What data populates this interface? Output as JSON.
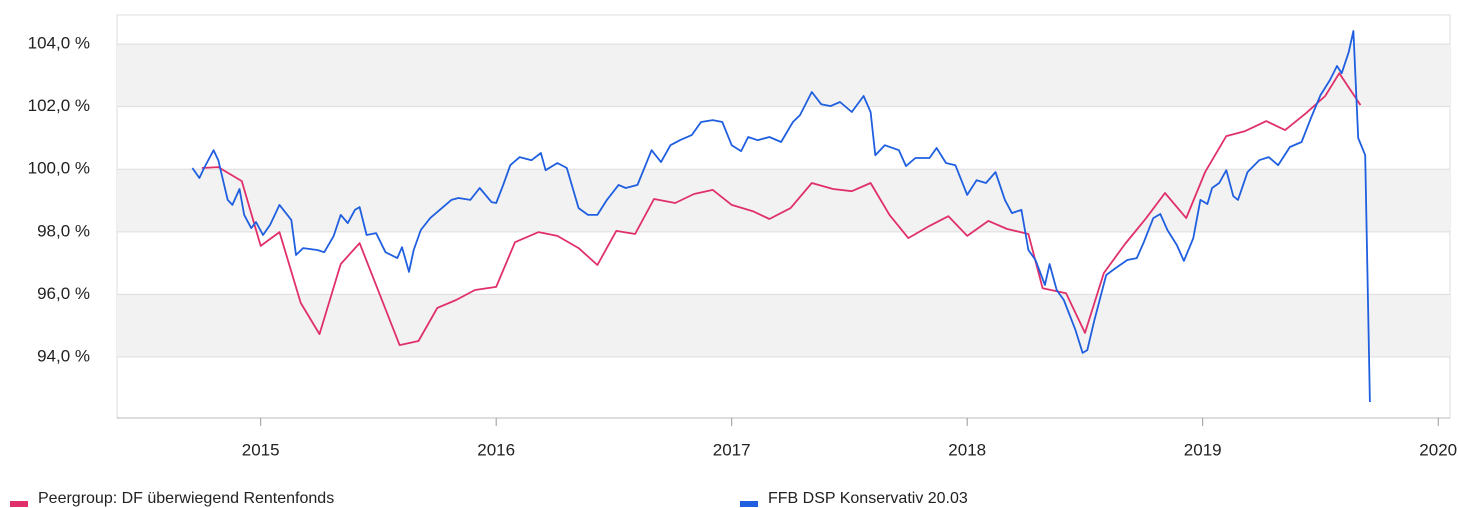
{
  "chart_data": {
    "type": "line",
    "xlim": [
      2014.39,
      2020.05
    ],
    "xticks": [
      2015,
      2016,
      2017,
      2018,
      2019,
      2020
    ],
    "ylim": [
      92.05,
      104.93
    ],
    "yticks": [
      {
        "value": 94,
        "label": "94,0 %"
      },
      {
        "value": 96,
        "label": "96,0 %"
      },
      {
        "value": 98,
        "label": "98,0 %"
      },
      {
        "value": 100,
        "label": "100,0 %"
      },
      {
        "value": 102,
        "label": "102,0 %"
      },
      {
        "value": 104,
        "label": "104,0 %"
      }
    ],
    "grid": true,
    "legend": "bottom",
    "series": [
      {
        "name": "Peergroup: DF überwiegend Rentenfonds",
        "color": "#e0306a",
        "x": [
          2014.75,
          2014.82,
          2014.92,
          2015.0,
          2015.08,
          2015.17,
          2015.25,
          2015.34,
          2015.42,
          2015.59,
          2015.67,
          2015.75,
          2015.83,
          2015.91,
          2016.0,
          2016.08,
          2016.18,
          2016.26,
          2016.35,
          2016.43,
          2016.51,
          2016.59,
          2016.67,
          2016.76,
          2016.84,
          2016.92,
          2017.0,
          2017.09,
          2017.16,
          2017.25,
          2017.34,
          2017.43,
          2017.51,
          2017.59,
          2017.67,
          2017.75,
          2017.84,
          2017.92,
          2018.0,
          2018.09,
          2018.17,
          2018.26,
          2018.32,
          2018.42,
          2018.5,
          2018.58,
          2018.67,
          2018.76,
          2018.84,
          2018.93,
          2019.01,
          2019.1,
          2019.18,
          2019.27,
          2019.35,
          2019.44,
          2019.52,
          2019.58,
          2019.67
        ],
        "values": [
          100.04,
          100.07,
          99.62,
          97.55,
          97.99,
          95.73,
          94.73,
          96.97,
          97.64,
          94.38,
          94.51,
          95.57,
          95.82,
          96.14,
          96.24,
          97.67,
          97.99,
          97.87,
          97.48,
          96.94,
          98.03,
          97.93,
          99.05,
          98.92,
          99.21,
          99.34,
          98.86,
          98.66,
          98.41,
          98.76,
          99.56,
          99.37,
          99.3,
          99.56,
          98.54,
          97.8,
          98.19,
          98.5,
          97.87,
          98.35,
          98.09,
          97.93,
          96.2,
          96.04,
          94.77,
          96.68,
          97.61,
          98.44,
          99.24,
          98.44,
          99.91,
          101.06,
          101.22,
          101.54,
          101.25,
          101.8,
          102.34,
          103.07,
          102.05
        ]
      },
      {
        "name": "FFB DSP Konservativ 20.03",
        "color": "#1f5fe0",
        "x": [
          2014.71,
          2014.74,
          2014.76,
          2014.8,
          2014.82,
          2014.86,
          2014.88,
          2014.91,
          2014.93,
          2014.96,
          2014.98,
          2015.01,
          2015.04,
          2015.08,
          2015.13,
          2015.15,
          2015.18,
          2015.24,
          2015.27,
          2015.31,
          2015.34,
          2015.37,
          2015.4,
          2015.42,
          2015.45,
          2015.49,
          2015.53,
          2015.58,
          2015.6,
          2015.63,
          2015.65,
          2015.68,
          2015.72,
          2015.76,
          2015.81,
          2015.84,
          2015.89,
          2015.93,
          2015.98,
          2016.0,
          2016.03,
          2016.06,
          2016.1,
          2016.15,
          2016.19,
          2016.21,
          2016.26,
          2016.3,
          2016.35,
          2016.39,
          2016.43,
          2016.47,
          2016.52,
          2016.55,
          2016.6,
          2016.66,
          2016.7,
          2016.74,
          2016.78,
          2016.83,
          2016.87,
          2016.92,
          2016.96,
          2017.0,
          2017.04,
          2017.07,
          2017.11,
          2017.16,
          2017.21,
          2017.26,
          2017.29,
          2017.34,
          2017.38,
          2017.42,
          2017.46,
          2017.51,
          2017.56,
          2017.59,
          2017.61,
          2017.65,
          2017.71,
          2017.74,
          2017.78,
          2017.84,
          2017.87,
          2017.91,
          2017.95,
          2018.0,
          2018.04,
          2018.08,
          2018.12,
          2018.16,
          2018.19,
          2018.23,
          2018.26,
          2018.29,
          2018.33,
          2018.35,
          2018.38,
          2018.41,
          2018.46,
          2018.49,
          2018.51,
          2018.54,
          2018.59,
          2018.63,
          2018.68,
          2018.72,
          2018.75,
          2018.79,
          2018.82,
          2018.85,
          2018.89,
          2018.92,
          2018.96,
          2018.99,
          2019.02,
          2019.04,
          2019.07,
          2019.1,
          2019.13,
          2019.15,
          2019.19,
          2019.24,
          2019.28,
          2019.32,
          2019.37,
          2019.42,
          2019.46,
          2019.5,
          2019.54,
          2019.57,
          2019.59,
          2019.62,
          2019.64,
          2019.66,
          2019.69,
          2019.71
        ],
        "values": [
          100.04,
          99.72,
          100.04,
          100.61,
          100.29,
          99.02,
          98.86,
          99.37,
          98.54,
          98.12,
          98.31,
          97.9,
          98.22,
          98.86,
          98.38,
          97.26,
          97.48,
          97.42,
          97.35,
          97.87,
          98.54,
          98.28,
          98.7,
          98.79,
          97.9,
          97.96,
          97.35,
          97.16,
          97.51,
          96.72,
          97.42,
          98.06,
          98.44,
          98.7,
          99.02,
          99.08,
          99.02,
          99.4,
          98.95,
          98.92,
          99.5,
          100.13,
          100.39,
          100.29,
          100.52,
          99.97,
          100.2,
          100.04,
          98.76,
          98.54,
          98.54,
          99.02,
          99.5,
          99.4,
          99.5,
          100.61,
          100.23,
          100.77,
          100.93,
          101.09,
          101.51,
          101.57,
          101.51,
          100.77,
          100.58,
          101.03,
          100.93,
          101.03,
          100.87,
          101.51,
          101.73,
          102.47,
          102.08,
          102.02,
          102.15,
          101.83,
          102.34,
          101.83,
          100.45,
          100.77,
          100.61,
          100.1,
          100.36,
          100.36,
          100.68,
          100.2,
          100.13,
          99.18,
          99.65,
          99.56,
          99.91,
          99.02,
          98.6,
          98.7,
          97.42,
          97.1,
          96.3,
          96.97,
          96.14,
          95.82,
          94.86,
          94.13,
          94.22,
          95.18,
          96.62,
          96.84,
          97.1,
          97.16,
          97.67,
          98.44,
          98.57,
          98.06,
          97.58,
          97.07,
          97.8,
          99.02,
          98.89,
          99.4,
          99.56,
          99.97,
          99.14,
          99.02,
          99.91,
          100.29,
          100.39,
          100.13,
          100.71,
          100.87,
          101.64,
          102.37,
          102.85,
          103.3,
          103.07,
          103.74,
          104.42,
          101.0,
          100.45,
          92.56
        ]
      }
    ]
  }
}
